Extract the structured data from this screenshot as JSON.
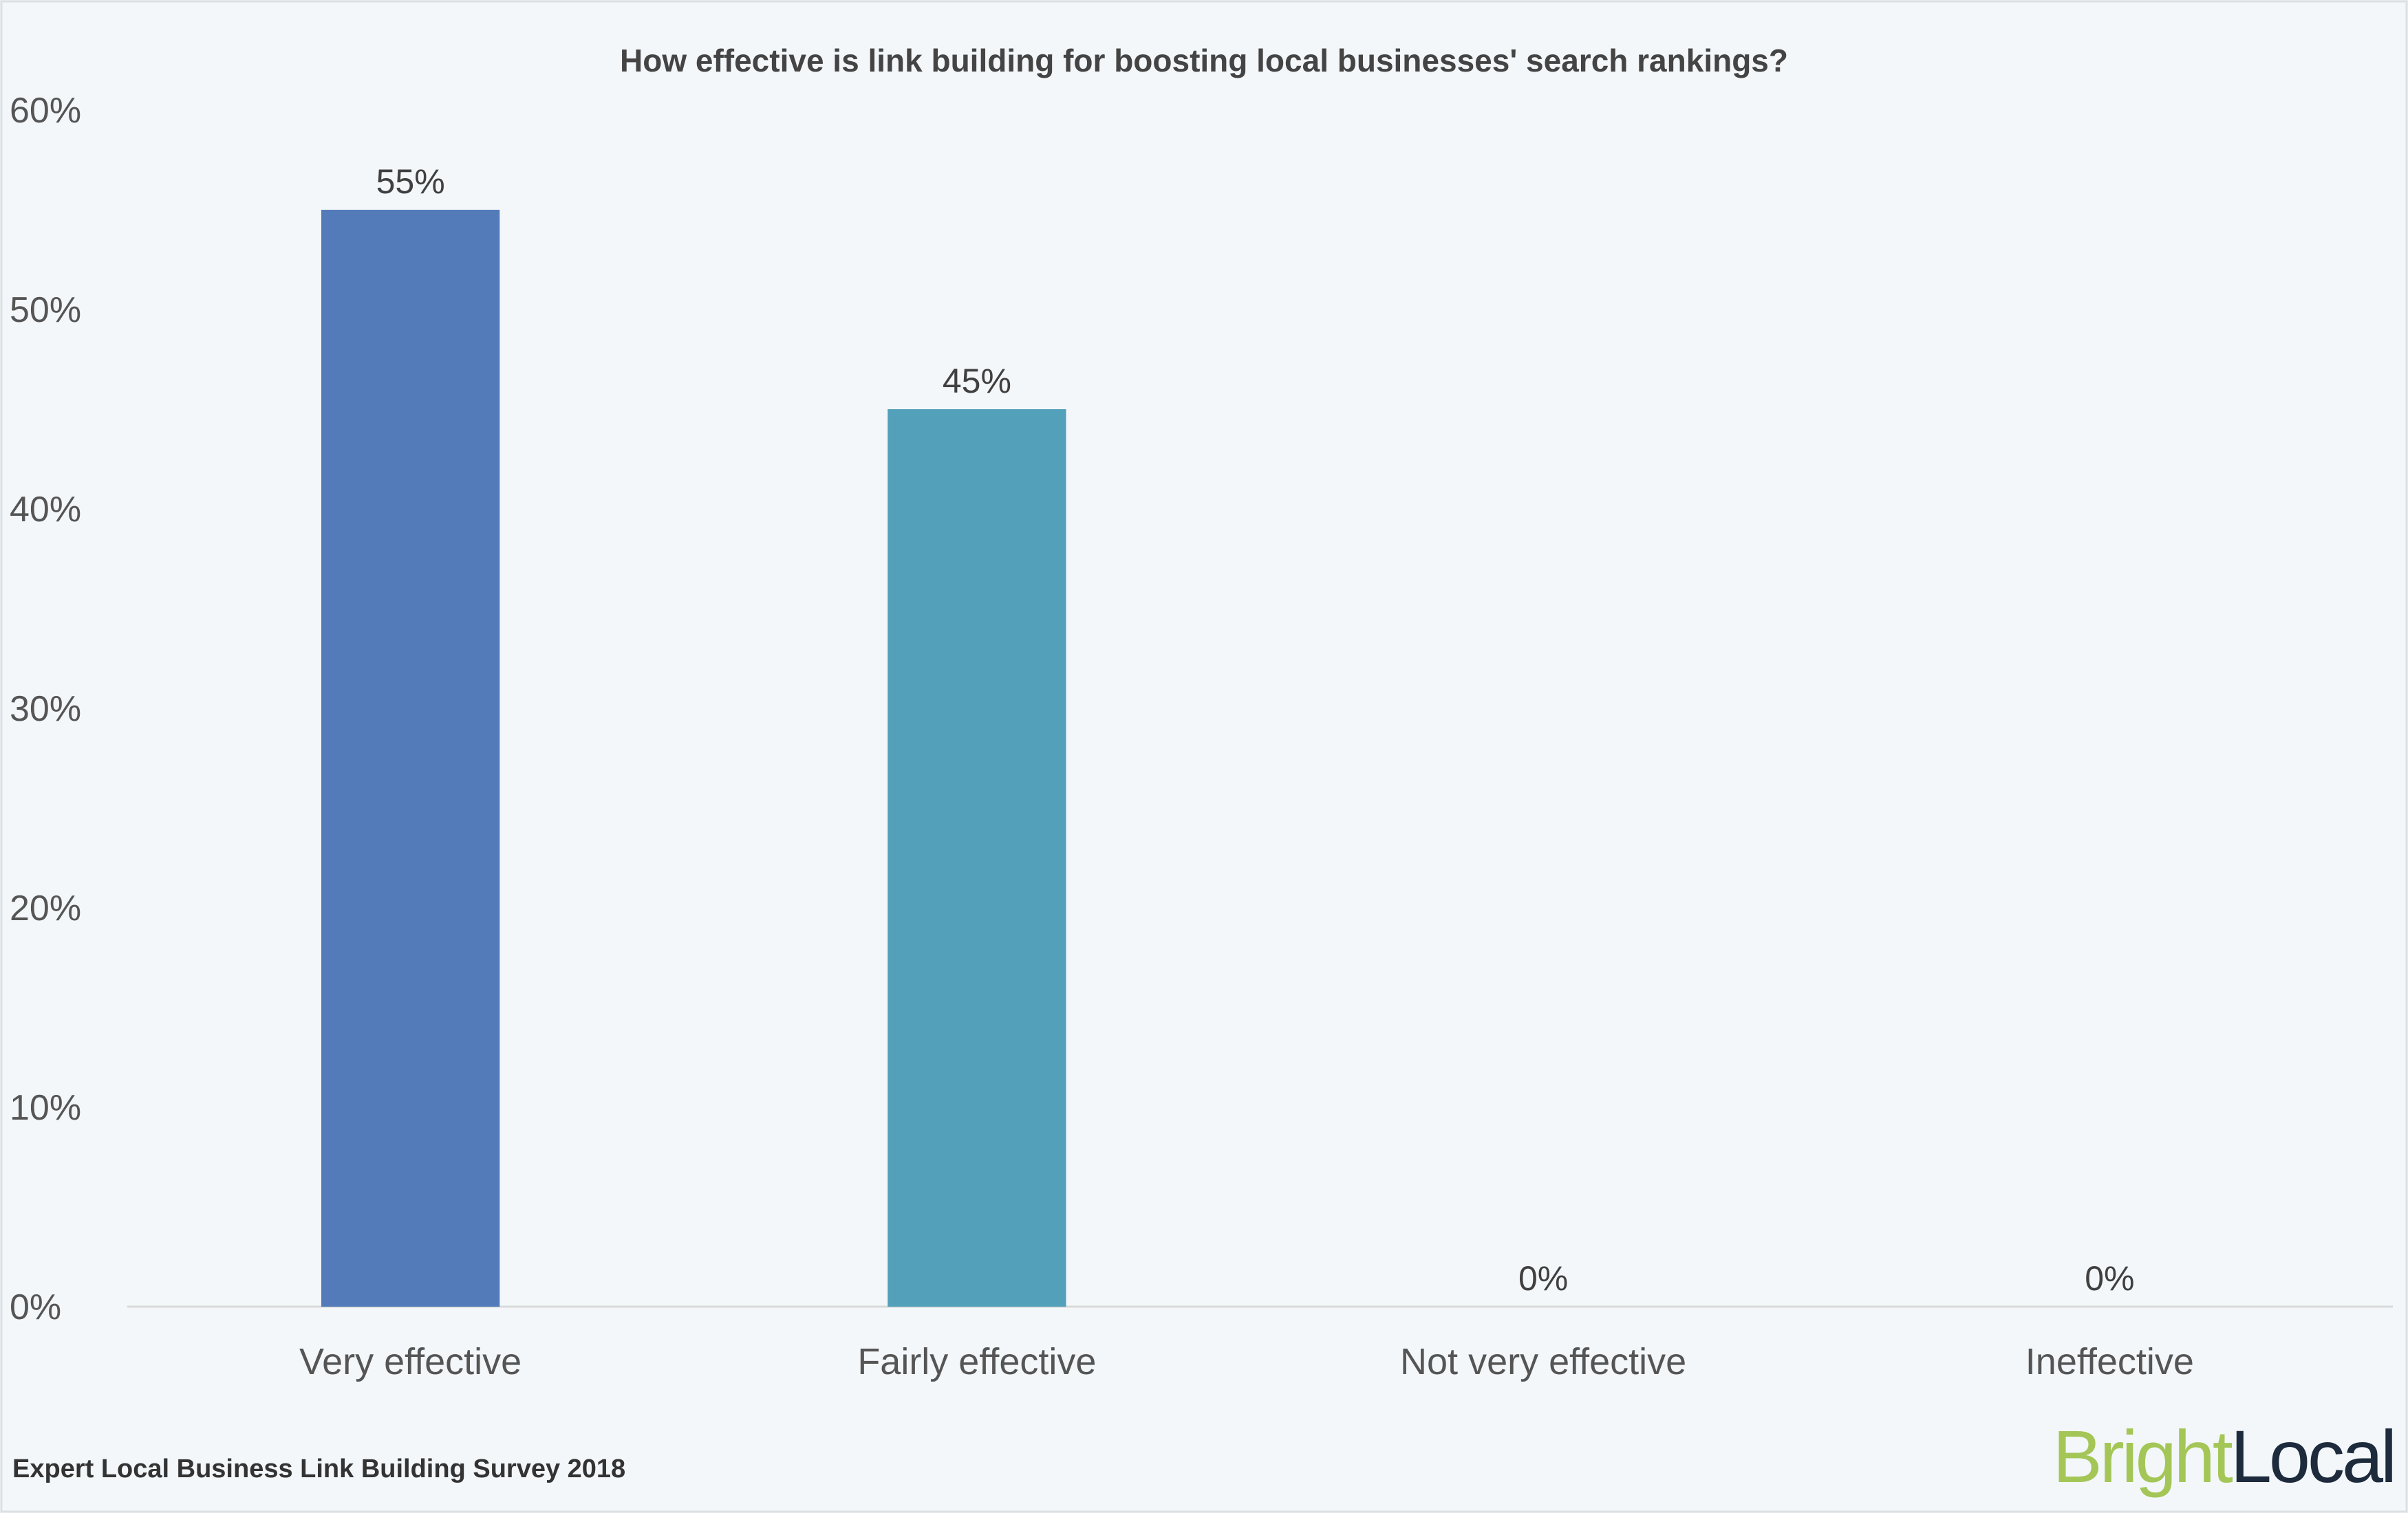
{
  "chart_data": {
    "type": "bar",
    "title": "How effective is link building for boosting local businesses' search rankings?",
    "categories": [
      "Very effective",
      "Fairly effective",
      "Not very effective",
      "Ineffective"
    ],
    "values": [
      55,
      45,
      0,
      0
    ],
    "data_labels": [
      "55%",
      "45%",
      "0%",
      "0%"
    ],
    "bar_colors": [
      "#537bb9",
      "#53a0ba",
      "#53a0ba",
      "#53a0ba"
    ],
    "ylim": [
      0,
      60
    ],
    "yticks": [
      0,
      10,
      20,
      30,
      40,
      50,
      60
    ],
    "ytick_labels": [
      "0%",
      "10%",
      "20%",
      "30%",
      "40%",
      "50%",
      "60%"
    ],
    "xlabel": "",
    "ylabel": "",
    "grid": false,
    "legend": "none"
  },
  "footer": {
    "source": "Expert Local Business Link Building Survey 2018"
  },
  "logo": {
    "part1": "Bright",
    "part2": "Local",
    "color1": "#a4c657",
    "color2": "#1d2b3c"
  }
}
